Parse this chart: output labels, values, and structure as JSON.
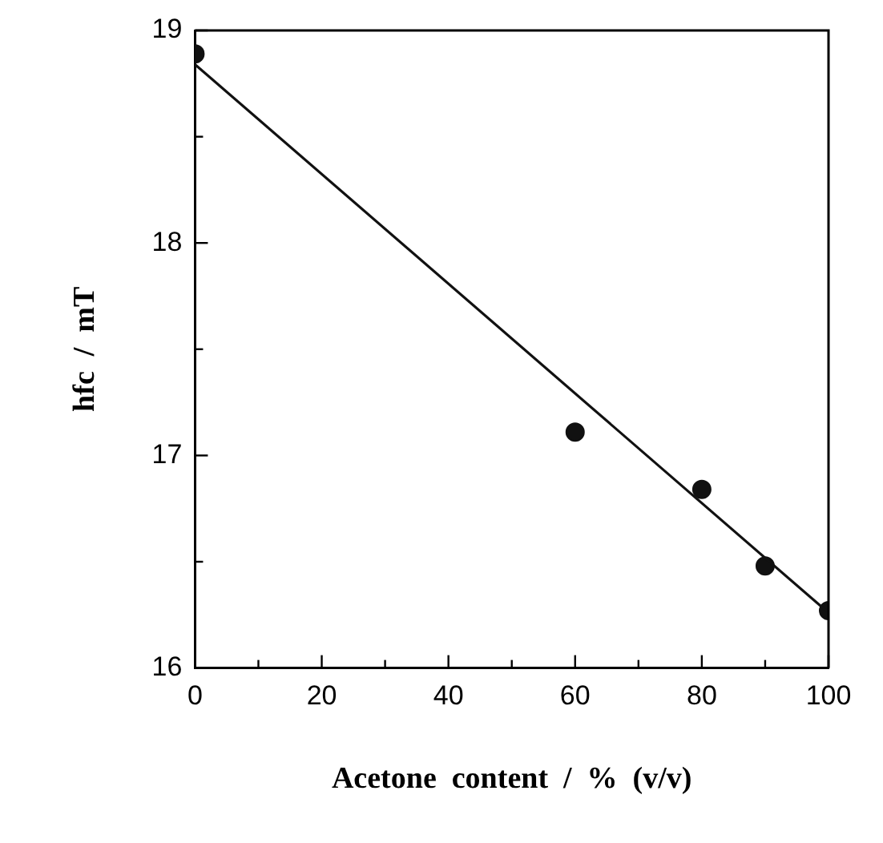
{
  "chart_data": {
    "type": "scatter",
    "xlabel": "Acetone  content  /  %  (v/v)",
    "ylabel": "hfc  /  mT",
    "xlim": [
      0,
      100
    ],
    "ylim": [
      16,
      19
    ],
    "xticks": [
      0,
      {
        "value": 10,
        "label": null
      },
      20,
      {
        "value": 30,
        "label": null
      },
      40,
      {
        "value": 50,
        "label": null
      },
      60,
      {
        "value": 70,
        "label": null
      },
      80,
      {
        "value": 90,
        "label": null
      },
      100
    ],
    "yticks": [
      16,
      {
        "value": 16.5,
        "label": null
      },
      17,
      {
        "value": 17.5,
        "label": null
      },
      18,
      {
        "value": 18.5,
        "label": null
      },
      19
    ],
    "grid": false,
    "legend": false,
    "marker": "circle",
    "series": [
      {
        "type": "scatter",
        "color": "#111111",
        "x": [
          0,
          60,
          80,
          90,
          100
        ],
        "values": [
          18.89,
          17.11,
          16.84,
          16.48,
          16.27
        ]
      },
      {
        "type": "line",
        "color": "#111111",
        "x": [
          0,
          100
        ],
        "values": [
          18.84,
          16.26
        ],
        "marker": "none",
        "line_style": "solid"
      }
    ]
  }
}
